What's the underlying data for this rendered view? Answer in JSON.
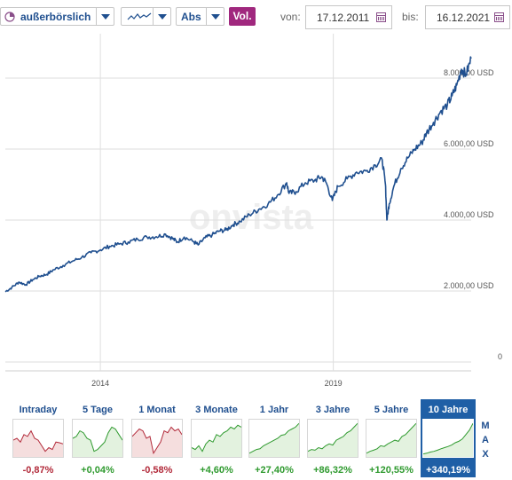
{
  "toolbar": {
    "exchange": "außerbörslich",
    "chart_style_icon": "line-chart-icon",
    "scale": "Abs",
    "volume_label": "Vol.",
    "from_label": "von:",
    "from_date": "17.12.2011",
    "to_label": "bis:",
    "to_date": "16.12.2021"
  },
  "watermark": "onvista",
  "chart_data": {
    "type": "line",
    "ylim": [
      0,
      9000
    ],
    "y_ticks": [
      "8.000,00 USD",
      "6.000,00 USD",
      "4.000,00 USD",
      "2.000,00 USD",
      "0"
    ],
    "y_tick_values": [
      8000,
      6000,
      4000,
      2000,
      0
    ],
    "x_ticks": [
      "2014",
      "2019"
    ],
    "x_tick_values": [
      2014.0,
      2019.0
    ],
    "x_range": [
      2011.96,
      2021.96
    ],
    "series": [
      {
        "x": [
          2011.96,
          2012.1,
          2012.25,
          2012.4,
          2012.55,
          2012.7,
          2012.85,
          2013.0,
          2013.2,
          2013.4,
          2013.6,
          2013.8,
          2014.0,
          2014.2,
          2014.4,
          2014.6,
          2014.8,
          2015.0,
          2015.2,
          2015.4,
          2015.55,
          2015.65,
          2015.8,
          2016.0,
          2016.1,
          2016.25,
          2016.4,
          2016.55,
          2016.7,
          2016.85,
          2017.0,
          2017.2,
          2017.4,
          2017.6,
          2017.8,
          2018.0,
          2018.05,
          2018.2,
          2018.4,
          2018.6,
          2018.75,
          2018.85,
          2018.98,
          2019.1,
          2019.3,
          2019.5,
          2019.7,
          2019.9,
          2020.05,
          2020.12,
          2020.15,
          2020.2,
          2020.3,
          2020.45,
          2020.6,
          2020.75,
          2020.9,
          2021.0,
          2021.15,
          2021.3,
          2021.45,
          2021.55,
          2021.65,
          2021.75,
          2021.85,
          2021.96
        ],
        "values": [
          1980,
          2100,
          2250,
          2180,
          2320,
          2420,
          2470,
          2600,
          2720,
          2840,
          2950,
          3080,
          3160,
          3260,
          3320,
          3380,
          3460,
          3520,
          3530,
          3600,
          3480,
          3380,
          3520,
          3390,
          3300,
          3500,
          3580,
          3690,
          3720,
          3870,
          3960,
          4150,
          4300,
          4450,
          4700,
          5050,
          4750,
          4800,
          5050,
          5120,
          5220,
          5050,
          4550,
          4950,
          5160,
          5350,
          5380,
          5550,
          5700,
          5000,
          4000,
          4450,
          4950,
          5450,
          5750,
          6000,
          6180,
          6450,
          6750,
          7050,
          7250,
          7500,
          7800,
          8250,
          8100,
          8550
        ]
      }
    ]
  },
  "periods": [
    {
      "label": "Intraday",
      "change": "-0,87%",
      "trend": "down",
      "spark": [
        0.55,
        0.5,
        0.6,
        0.4,
        0.45,
        0.3,
        0.5,
        0.55,
        0.7,
        0.85,
        0.75,
        0.8,
        0.6,
        0.62,
        0.65
      ]
    },
    {
      "label": "5 Tage",
      "change": "+0,04%",
      "trend": "up",
      "spark": [
        0.5,
        0.45,
        0.3,
        0.35,
        0.5,
        0.55,
        0.85,
        0.8,
        0.7,
        0.6,
        0.35,
        0.2,
        0.25,
        0.4,
        0.55
      ]
    },
    {
      "label": "1 Monat",
      "change": "-0,58%",
      "trend": "down",
      "spark": [
        0.45,
        0.35,
        0.25,
        0.3,
        0.5,
        0.45,
        0.9,
        0.75,
        0.6,
        0.3,
        0.35,
        0.2,
        0.3,
        0.25,
        0.4
      ]
    },
    {
      "label": "3 Monate",
      "change": "+4,60%",
      "trend": "up",
      "spark": [
        0.75,
        0.8,
        0.7,
        0.85,
        0.65,
        0.55,
        0.6,
        0.4,
        0.45,
        0.35,
        0.3,
        0.2,
        0.25,
        0.15,
        0.2
      ]
    },
    {
      "label": "1 Jahr",
      "change": "+27,40%",
      "trend": "up",
      "spark": [
        0.9,
        0.85,
        0.8,
        0.78,
        0.7,
        0.65,
        0.6,
        0.55,
        0.5,
        0.42,
        0.4,
        0.3,
        0.25,
        0.2,
        0.1
      ]
    },
    {
      "label": "3 Jahre",
      "change": "+86,32%",
      "trend": "up",
      "spark": [
        0.85,
        0.8,
        0.82,
        0.75,
        0.78,
        0.7,
        0.65,
        0.68,
        0.55,
        0.5,
        0.45,
        0.35,
        0.3,
        0.2,
        0.1
      ]
    },
    {
      "label": "5 Jahre",
      "change": "+120,55%",
      "trend": "up",
      "spark": [
        0.9,
        0.85,
        0.82,
        0.78,
        0.7,
        0.72,
        0.65,
        0.6,
        0.55,
        0.58,
        0.45,
        0.4,
        0.3,
        0.2,
        0.1
      ]
    },
    {
      "label": "10 Jahre",
      "change": "+340,19%",
      "trend": "up",
      "spark": [
        0.92,
        0.9,
        0.87,
        0.85,
        0.82,
        0.78,
        0.75,
        0.72,
        0.68,
        0.62,
        0.58,
        0.52,
        0.4,
        0.28,
        0.1
      ]
    }
  ],
  "max_label": [
    "M",
    "A",
    "X"
  ],
  "colors": {
    "line": "#1f4f8f",
    "up": "#2f9a2f",
    "down": "#b22a3a",
    "accent": "#1f5fa6",
    "vol": "#a0287e"
  }
}
